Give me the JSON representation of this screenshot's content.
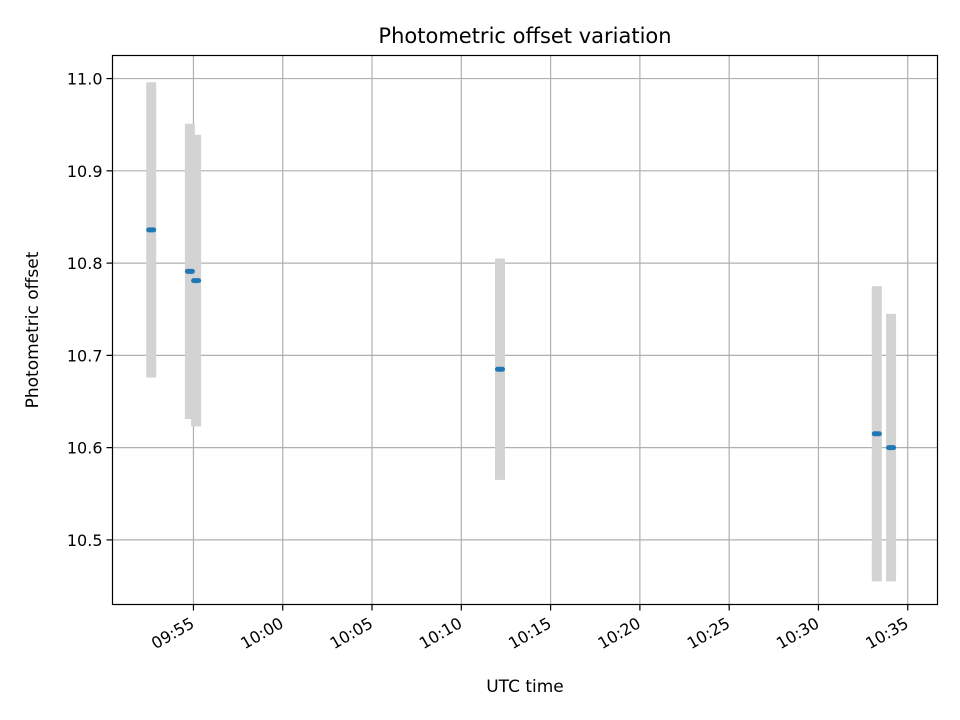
{
  "chart_data": {
    "type": "scatter",
    "title": "Photometric offset variation",
    "xlabel": "UTC time",
    "ylabel": "Photometric offset",
    "grid": true,
    "x_ticks": [
      "09:55",
      "10:00",
      "10:05",
      "10:10",
      "10:15",
      "10:20",
      "10:25",
      "10:30",
      "10:35"
    ],
    "y_ticks": [
      "10.5",
      "10.6",
      "10.7",
      "10.8",
      "10.9",
      "11.0"
    ],
    "xlim": [
      "09:50:28",
      "10:36:40"
    ],
    "ylim": [
      10.43,
      11.025
    ],
    "series": [
      {
        "x": [
          "09:52:38",
          "09:54:48",
          "09:55:09",
          "10:12:10",
          "10:33:16",
          "10:34:04"
        ],
        "y": [
          10.836,
          10.791,
          10.781,
          10.685,
          10.615,
          10.6
        ],
        "yerr": [
          0.16,
          0.16,
          0.158,
          0.12,
          0.16,
          0.145
        ]
      }
    ],
    "colors": {
      "point": "#1f77b4",
      "errorbar": "#d3d3d3",
      "grid": "#b0b0b0"
    }
  }
}
